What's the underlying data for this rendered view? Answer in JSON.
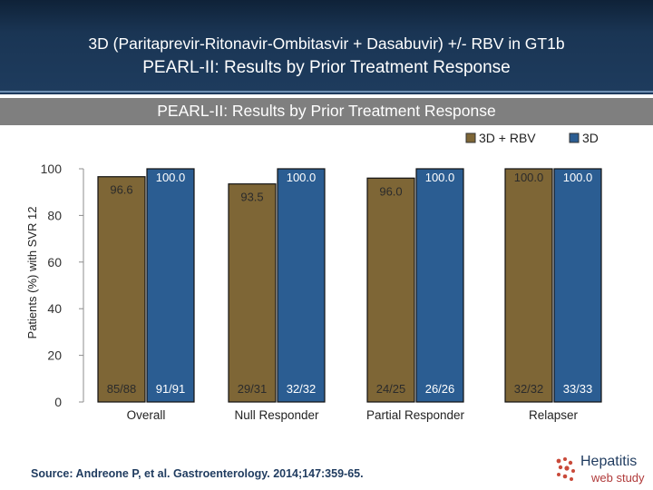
{
  "header": {
    "title_line1": "3D (Paritaprevir-Ritonavir-Ombitasvir + Dasabuvir) +/- RBV in GT1b",
    "title_line2": "PEARL-II: Results by Prior Treatment Response"
  },
  "subheader": {
    "text": "PEARL-II: Results by Prior Treatment Response"
  },
  "footer": {
    "source": "Source: Andreone P, et al. Gastroenterology.  2014;147:359-65."
  },
  "logo": {
    "line1": "Hepatitis",
    "line2": "web study"
  },
  "colors": {
    "rbv": "#7e6636",
    "d3": "#2b5d92",
    "header": "#1e3c5e"
  },
  "chart_data": {
    "type": "bar",
    "title": "PEARL-II: Results by Prior Treatment Response",
    "xlabel": "",
    "ylabel": "Patients (%) with SVR 12",
    "ylim": [
      0,
      100
    ],
    "yticks": [
      0,
      20,
      40,
      60,
      80,
      100
    ],
    "grid": false,
    "legend_position": "top-right",
    "categories": [
      "Overall",
      "Null Responder",
      "Partial Responder",
      "Relapser"
    ],
    "series": [
      {
        "name": "3D + RBV",
        "values": [
          96.6,
          93.5,
          96.0,
          100.0
        ],
        "labels": [
          "96.6",
          "93.5",
          "96.0",
          "100.0"
        ],
        "counts": [
          "85/88",
          "29/31",
          "24/25",
          "32/32"
        ]
      },
      {
        "name": "3D",
        "values": [
          100.0,
          100.0,
          100.0,
          100.0
        ],
        "labels": [
          "100.0",
          "100.0",
          "100.0",
          "100.0"
        ],
        "counts": [
          "91/91",
          "32/32",
          "26/26",
          "33/33"
        ]
      }
    ]
  }
}
